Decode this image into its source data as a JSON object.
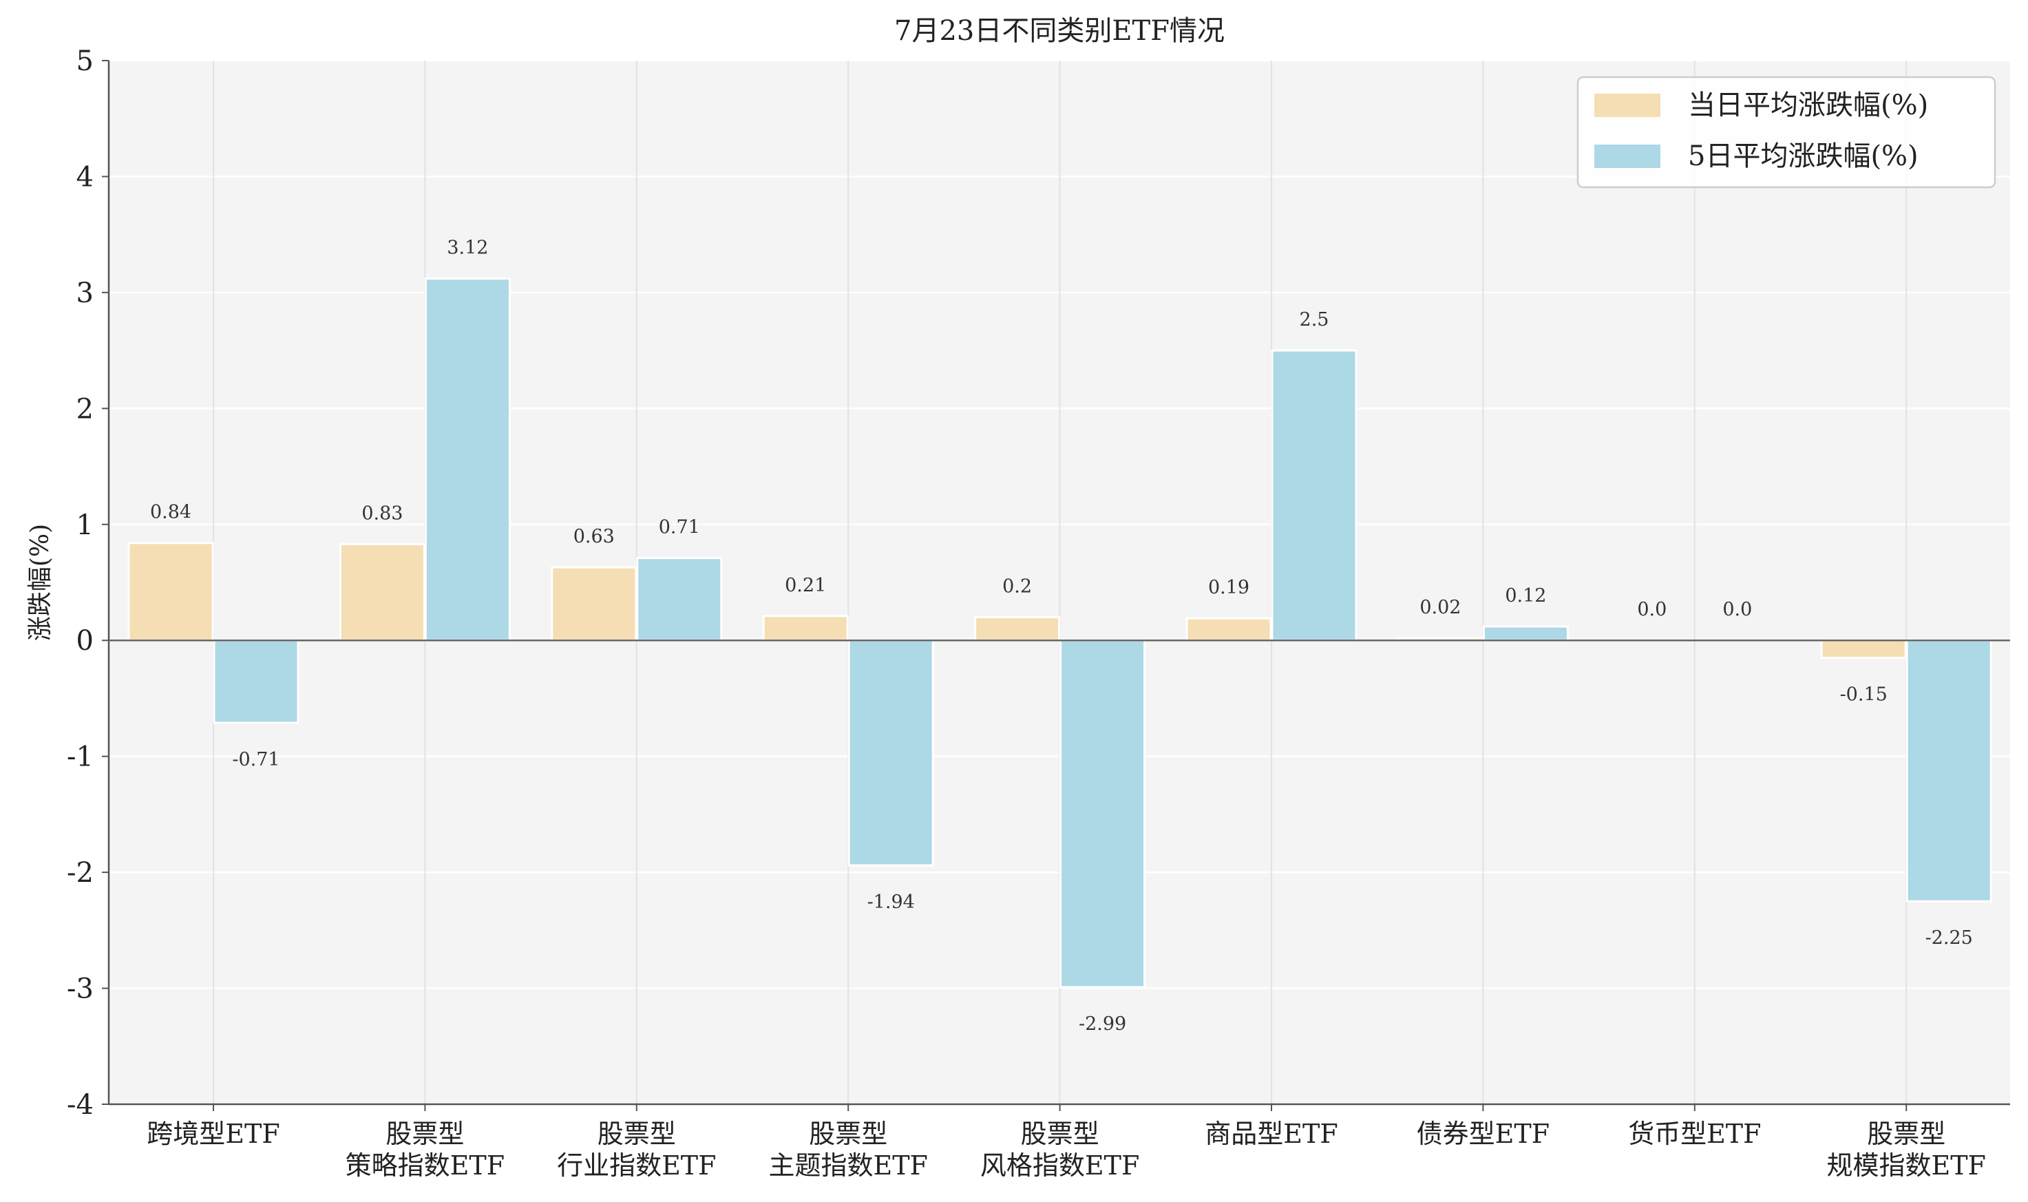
{
  "chart_data": {
    "type": "bar",
    "title": "7月23日不同类别ETF情况",
    "ylabel": "涨跌幅(%)",
    "xlabel": "",
    "ylim": [
      -4,
      5
    ],
    "yticks": [
      -4,
      -3,
      -2,
      -1,
      0,
      1,
      2,
      3,
      4,
      5
    ],
    "grid": true,
    "legend_position": "top-right",
    "categories": [
      [
        "跨境型ETF"
      ],
      [
        "股票型",
        "策略指数ETF"
      ],
      [
        "股票型",
        "行业指数ETF"
      ],
      [
        "股票型",
        "主题指数ETF"
      ],
      [
        "股票型",
        "风格指数ETF"
      ],
      [
        "商品型ETF"
      ],
      [
        "债券型ETF"
      ],
      [
        "货币型ETF"
      ],
      [
        "股票型",
        "规模指数ETF"
      ]
    ],
    "series": [
      {
        "name": "当日平均涨跌幅(%)",
        "color": "#f5deb3",
        "values": [
          0.84,
          0.83,
          0.63,
          0.21,
          0.2,
          0.19,
          0.02,
          0.0,
          -0.15
        ],
        "labels": [
          "0.84",
          "0.83",
          "0.63",
          "0.21",
          "0.2",
          "0.19",
          "0.02",
          "0.0",
          "-0.15"
        ]
      },
      {
        "name": "5日平均涨跌幅(%)",
        "color": "#add8e6",
        "values": [
          -0.71,
          3.12,
          0.71,
          -1.94,
          -2.99,
          2.5,
          0.12,
          0.0,
          -2.25
        ],
        "labels": [
          "-0.71",
          "3.12",
          "0.71",
          "-1.94",
          "-2.99",
          "2.5",
          "0.12",
          "0.0",
          "-2.25"
        ]
      }
    ]
  }
}
